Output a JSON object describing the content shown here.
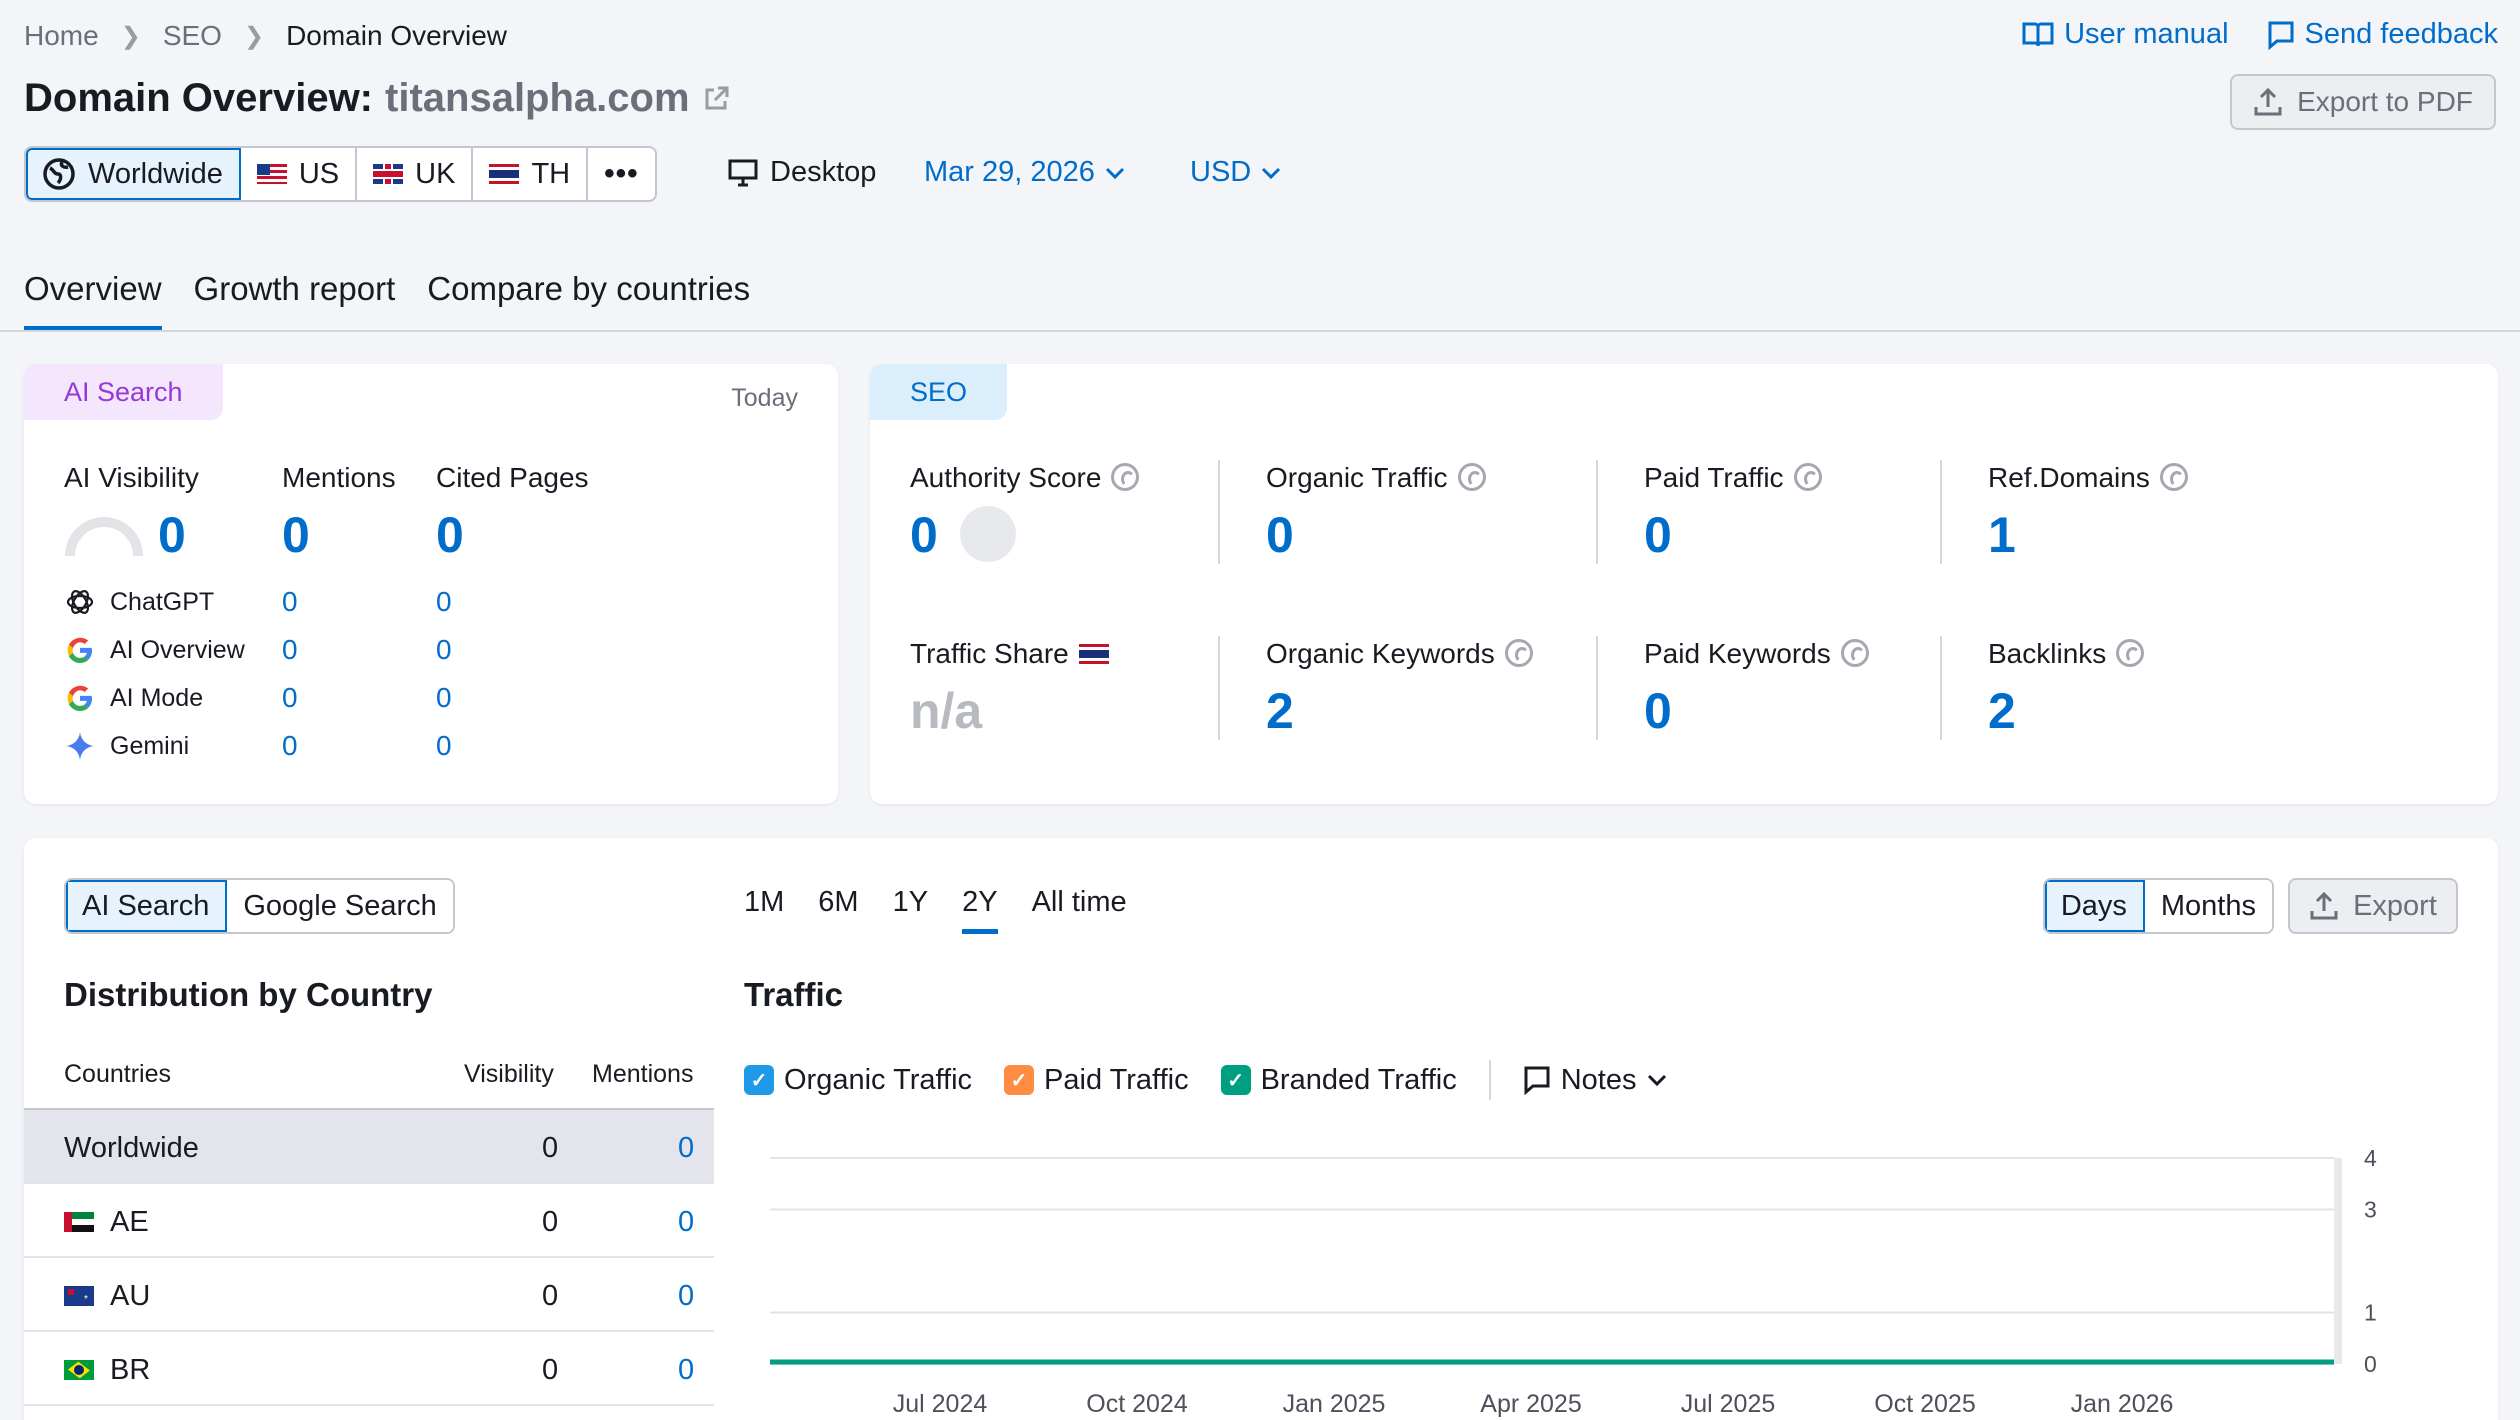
{
  "breadcrumb": {
    "items": [
      "Home",
      "SEO",
      "Domain Overview"
    ]
  },
  "header": {
    "user_manual": "User manual",
    "send_feedback": "Send feedback",
    "title_prefix": "Domain Overview:",
    "domain": "titansalpha.com",
    "export_pdf": "Export to PDF"
  },
  "databases": [
    {
      "label": "Worldwide",
      "selected": true
    },
    {
      "label": "US"
    },
    {
      "label": "UK"
    },
    {
      "label": "TH"
    }
  ],
  "device": "Desktop",
  "date": "Mar 29, 2026",
  "currency": "USD",
  "tabs": [
    "Overview",
    "Growth report",
    "Compare by countries"
  ],
  "ai_card": {
    "badge": "AI Search",
    "period": "Today",
    "ai_visibility_label": "AI Visibility",
    "ai_visibility_value": "0",
    "mentions_label": "Mentions",
    "mentions_value": "0",
    "cited_label": "Cited Pages",
    "cited_value": "0",
    "platforms": [
      {
        "name": "ChatGPT",
        "mentions": "0",
        "cited": "0"
      },
      {
        "name": "AI Overview",
        "mentions": "0",
        "cited": "0"
      },
      {
        "name": "AI Mode",
        "mentions": "0",
        "cited": "0"
      },
      {
        "name": "Gemini",
        "mentions": "0",
        "cited": "0"
      }
    ]
  },
  "seo_card": {
    "badge": "SEO",
    "authority_label": "Authority Score",
    "authority_value": "0",
    "organic_traffic_label": "Organic Traffic",
    "organic_traffic_value": "0",
    "paid_traffic_label": "Paid Traffic",
    "paid_traffic_value": "0",
    "ref_domains_label": "Ref.Domains",
    "ref_domains_value": "1",
    "traffic_share_label": "Traffic Share",
    "traffic_share_value": "n/a",
    "organic_keywords_label": "Organic Keywords",
    "organic_keywords_value": "2",
    "paid_keywords_label": "Paid Keywords",
    "paid_keywords_value": "0",
    "backlinks_label": "Backlinks",
    "backlinks_value": "2"
  },
  "bottom": {
    "source_toggle": [
      "AI Search",
      "Google Search"
    ],
    "distribution_title": "Distribution by Country",
    "table_headers": [
      "Countries",
      "Visibility",
      "Mentions"
    ],
    "rows": [
      {
        "country": "Worldwide",
        "visibility": "0",
        "mentions": "0"
      },
      {
        "country": "AE",
        "visibility": "0",
        "mentions": "0"
      },
      {
        "country": "AU",
        "visibility": "0",
        "mentions": "0"
      },
      {
        "country": "BR",
        "visibility": "0",
        "mentions": "0"
      }
    ],
    "periods": [
      "1M",
      "6M",
      "1Y",
      "2Y",
      "All time"
    ],
    "active_period": "2Y",
    "granularity": [
      "Days",
      "Months"
    ],
    "export": "Export",
    "traffic_title": "Traffic",
    "legend": [
      {
        "label": "Organic Traffic",
        "color": "#1f9ae8"
      },
      {
        "label": "Paid Traffic",
        "color": "#ff8c43"
      },
      {
        "label": "Branded Traffic",
        "color": "#009f81"
      }
    ],
    "notes": "Notes"
  },
  "chart_data": {
    "type": "line",
    "x_ticks": [
      "Jul 2024",
      "Oct 2024",
      "Jan 2025",
      "Apr 2025",
      "Jul 2025",
      "Oct 2025",
      "Jan 2026"
    ],
    "y_ticks": [
      "4",
      "3",
      "1",
      "0"
    ],
    "ylim": [
      0,
      4
    ],
    "series": [
      {
        "name": "Branded Traffic",
        "color": "#009f81",
        "values": [
          0,
          0,
          0,
          0,
          0,
          0,
          0,
          0
        ]
      }
    ]
  }
}
